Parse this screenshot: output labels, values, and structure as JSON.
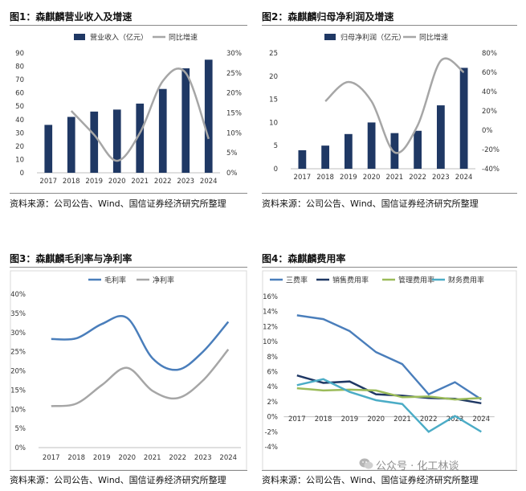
{
  "colors": {
    "navy": "#1f3864",
    "gray": "#a6a6a6",
    "blue": "#4a7ebb",
    "green": "#9bbb59",
    "cyan": "#4bacc6"
  },
  "panels": [
    {
      "title": "图1：森麒麟营业收入及增速",
      "source": "资料来源：公司公告、Wind、国信证券经济研究所整理"
    },
    {
      "title": "图2：森麒麟归母净利润及增速",
      "source": "资料来源：公司公告、Wind、国信证券经济研究所整理"
    },
    {
      "title": "图3：森麒麟毛利率与净利率",
      "source": "资料来源：公司公告、Wind、国信证券经济研究所整理"
    },
    {
      "title": "图4：森麒麟费用率",
      "source": "资料来源：公司公告、Wind、国信证券经济研究所整理"
    }
  ],
  "watermark": "公众号 · 化工林谈",
  "chart_data": [
    {
      "type": "bar",
      "categories": [
        "2017",
        "2018",
        "2019",
        "2020",
        "2021",
        "2022",
        "2023",
        "2024"
      ],
      "series": [
        {
          "name": "营业收入（亿元）",
          "type": "bar",
          "axis": "left",
          "color": "#1f3864",
          "values": [
            36,
            42,
            46,
            47.5,
            52,
            63,
            78.5,
            85
          ]
        },
        {
          "name": "同比增速",
          "type": "line",
          "axis": "right",
          "color": "#a6a6a6",
          "values": [
            null,
            15.5,
            9.5,
            3,
            10,
            23,
            25,
            8.5
          ]
        }
      ],
      "y_left": {
        "min": 0,
        "max": 90,
        "step": 10,
        "ticks": [
          "0",
          "10",
          "20",
          "30",
          "40",
          "50",
          "60",
          "70",
          "80",
          "90"
        ]
      },
      "y_right": {
        "min": 0,
        "max": 30,
        "step": 5,
        "ticks": [
          "0%",
          "5%",
          "10%",
          "15%",
          "20%",
          "25%",
          "30%"
        ]
      },
      "legend": "top"
    },
    {
      "type": "bar",
      "categories": [
        "2017",
        "2018",
        "2019",
        "2020",
        "2021",
        "2022",
        "2023",
        "2024"
      ],
      "series": [
        {
          "name": "归母净利润（亿元）",
          "type": "bar",
          "axis": "left",
          "color": "#1f3864",
          "values": [
            4,
            5,
            7.5,
            10,
            7.7,
            8.2,
            13.7,
            21.8
          ]
        },
        {
          "name": "同比增速",
          "type": "line",
          "axis": "right",
          "color": "#a6a6a6",
          "values": [
            null,
            30,
            50,
            30,
            -23,
            5,
            72,
            60
          ]
        }
      ],
      "y_left": {
        "min": 0,
        "max": 25,
        "step": 5,
        "ticks": [
          "0",
          "5",
          "10",
          "15",
          "20",
          "25"
        ]
      },
      "y_right": {
        "min": -40,
        "max": 80,
        "step": 20,
        "ticks": [
          "-40%",
          "-20%",
          "0%",
          "20%",
          "40%",
          "60%",
          "80%"
        ]
      },
      "legend": "top"
    },
    {
      "type": "line",
      "categories": [
        "2017",
        "2018",
        "2019",
        "2020",
        "2021",
        "2022",
        "2023",
        "2024"
      ],
      "series": [
        {
          "name": "毛利率",
          "color": "#4a7ebb",
          "values": [
            28.3,
            28.5,
            32.2,
            33.8,
            23.3,
            20.3,
            25,
            32.8
          ]
        },
        {
          "name": "净利率",
          "color": "#a6a6a6",
          "values": [
            10.8,
            11.5,
            16.3,
            20.8,
            14.8,
            12.9,
            17.5,
            25.6
          ]
        }
      ],
      "y_left": {
        "min": 0,
        "max": 40,
        "step": 5,
        "ticks": [
          "0%",
          "5%",
          "10%",
          "15%",
          "20%",
          "25%",
          "30%",
          "35%",
          "40%"
        ]
      },
      "legend": "top"
    },
    {
      "type": "line",
      "categories": [
        "2017",
        "2018",
        "2019",
        "2020",
        "2021",
        "2022",
        "2023",
        "2024"
      ],
      "series": [
        {
          "name": "三费率",
          "color": "#4a7ebb",
          "values": [
            13.5,
            13,
            11.4,
            8.6,
            7,
            3,
            4.6,
            2.3
          ]
        },
        {
          "name": "销售费用率",
          "color": "#1f3864",
          "values": [
            5.5,
            4.5,
            4.7,
            3,
            2.8,
            2.5,
            2.4,
            1.8
          ]
        },
        {
          "name": "管理费用率",
          "color": "#9bbb59",
          "values": [
            3.8,
            3.5,
            3.6,
            3.5,
            2.6,
            2.7,
            2.3,
            2.5
          ]
        },
        {
          "name": "财务费用率",
          "color": "#4bacc6",
          "values": [
            4.2,
            5,
            3.3,
            2.2,
            1.7,
            -2,
            0.1,
            -2
          ]
        }
      ],
      "y_left": {
        "min": -4,
        "max": 16,
        "step": 2,
        "ticks": [
          "-4%",
          "-2%",
          "0%",
          "2%",
          "4%",
          "6%",
          "8%",
          "10%",
          "12%",
          "14%",
          "16%"
        ]
      },
      "legend": "top"
    }
  ]
}
